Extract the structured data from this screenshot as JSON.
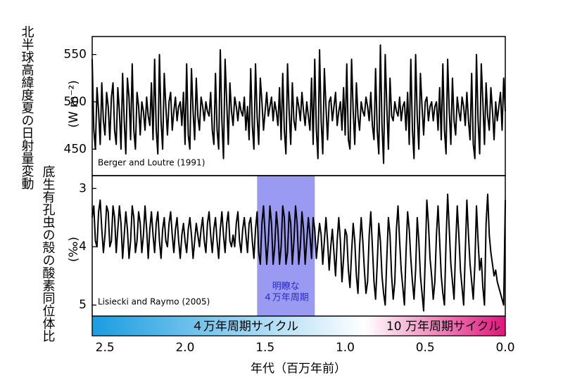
{
  "chart_data": [
    {
      "type": "line",
      "y_label": "北半球高緯度夏の日射量変動",
      "y_unit": "(W m⁻²)",
      "annotation": "Berger and Loutre (1991)",
      "color": "#000000",
      "xlim": [
        2.58,
        0
      ],
      "ylim": [
        422,
        569
      ],
      "yticks": [
        450,
        500,
        550
      ],
      "x": [
        2.58,
        2.57,
        2.56,
        2.55,
        2.54,
        2.53,
        2.52,
        2.51,
        2.5,
        2.49,
        2.48,
        2.47,
        2.46,
        2.45,
        2.44,
        2.43,
        2.42,
        2.41,
        2.4,
        2.39,
        2.38,
        2.37,
        2.36,
        2.35,
        2.34,
        2.33,
        2.32,
        2.31,
        2.3,
        2.29,
        2.28,
        2.27,
        2.26,
        2.25,
        2.24,
        2.23,
        2.22,
        2.21,
        2.2,
        2.19,
        2.18,
        2.17,
        2.16,
        2.15,
        2.14,
        2.13,
        2.12,
        2.11,
        2.1,
        2.09,
        2.08,
        2.07,
        2.06,
        2.05,
        2.04,
        2.03,
        2.02,
        2.01,
        2.0,
        1.99,
        1.98,
        1.97,
        1.96,
        1.95,
        1.94,
        1.93,
        1.92,
        1.91,
        1.9,
        1.89,
        1.88,
        1.87,
        1.86,
        1.85,
        1.84,
        1.83,
        1.82,
        1.81,
        1.8,
        1.79,
        1.78,
        1.77,
        1.76,
        1.75,
        1.74,
        1.73,
        1.72,
        1.71,
        1.7,
        1.69,
        1.68,
        1.67,
        1.66,
        1.65,
        1.64,
        1.63,
        1.62,
        1.61,
        1.6,
        1.59,
        1.58,
        1.57,
        1.56,
        1.55,
        1.54,
        1.53,
        1.52,
        1.51,
        1.5,
        1.49,
        1.48,
        1.47,
        1.46,
        1.45,
        1.44,
        1.43,
        1.42,
        1.41,
        1.4,
        1.39,
        1.38,
        1.37,
        1.36,
        1.35,
        1.34,
        1.33,
        1.32,
        1.31,
        1.3,
        1.29,
        1.28,
        1.27,
        1.26,
        1.25,
        1.24,
        1.23,
        1.22,
        1.21,
        1.2,
        1.19,
        1.18,
        1.17,
        1.16,
        1.15,
        1.14,
        1.13,
        1.12,
        1.11,
        1.1,
        1.09,
        1.08,
        1.07,
        1.06,
        1.05,
        1.04,
        1.03,
        1.02,
        1.01,
        1.0,
        0.99,
        0.98,
        0.97,
        0.96,
        0.95,
        0.94,
        0.93,
        0.92,
        0.91,
        0.9,
        0.89,
        0.88,
        0.87,
        0.86,
        0.85,
        0.84,
        0.83,
        0.82,
        0.81,
        0.8,
        0.79,
        0.78,
        0.77,
        0.76,
        0.75,
        0.74,
        0.73,
        0.72,
        0.71,
        0.7,
        0.69,
        0.68,
        0.67,
        0.66,
        0.65,
        0.64,
        0.63,
        0.62,
        0.61,
        0.6,
        0.59,
        0.58,
        0.57,
        0.56,
        0.55,
        0.54,
        0.53,
        0.52,
        0.51,
        0.5,
        0.49,
        0.48,
        0.47,
        0.46,
        0.45,
        0.44,
        0.43,
        0.42,
        0.41,
        0.4,
        0.39,
        0.38,
        0.37,
        0.36,
        0.35,
        0.34,
        0.33,
        0.32,
        0.31,
        0.3,
        0.29,
        0.28,
        0.27,
        0.26,
        0.25,
        0.24,
        0.23,
        0.22,
        0.21,
        0.2,
        0.19,
        0.18,
        0.17,
        0.16,
        0.15,
        0.14,
        0.13,
        0.12,
        0.11,
        0.1,
        0.09,
        0.08,
        0.07,
        0.06,
        0.05,
        0.04,
        0.03,
        0.02,
        0.01,
        0.0
      ],
      "values": [
        545,
        470,
        450,
        515,
        490,
        455,
        520,
        480,
        465,
        510,
        495,
        460,
        505,
        520,
        470,
        455,
        515,
        490,
        450,
        530,
        480,
        445,
        525,
        505,
        460,
        540,
        470,
        450,
        510,
        495,
        465,
        500,
        490,
        470,
        505,
        485,
        475,
        520,
        460,
        545,
        470,
        445,
        550,
        480,
        450,
        530,
        495,
        465,
        500,
        510,
        470,
        490,
        505,
        480,
        495,
        500,
        475,
        510,
        455,
        540,
        465,
        450,
        535,
        490,
        460,
        525,
        485,
        470,
        505,
        495,
        480,
        500,
        490,
        485,
        510,
        470,
        455,
        530,
        470,
        450,
        555,
        480,
        440,
        545,
        500,
        455,
        520,
        490,
        475,
        505,
        495,
        480,
        500,
        490,
        485,
        505,
        470,
        495,
        460,
        535,
        475,
        450,
        540,
        485,
        455,
        525,
        500,
        470,
        490,
        510,
        485,
        495,
        505,
        480,
        500,
        490,
        475,
        515,
        460,
        530,
        470,
        445,
        540,
        490,
        455,
        520,
        480,
        470,
        505,
        495,
        480,
        510,
        490,
        475,
        500,
        485,
        470,
        525,
        455,
        545,
        470,
        440,
        555,
        480,
        445,
        535,
        495,
        460,
        500,
        505,
        480,
        495,
        510,
        475,
        490,
        500,
        470,
        515,
        465,
        540,
        460,
        450,
        545,
        490,
        455,
        520,
        485,
        470,
        500,
        490,
        485,
        505,
        495,
        480,
        510,
        475,
        460,
        535,
        470,
        445,
        560,
        475,
        435,
        550,
        495,
        450,
        525,
        485,
        480,
        500,
        490,
        485,
        505,
        480,
        495,
        500,
        470,
        510,
        455,
        545,
        470,
        440,
        550,
        485,
        450,
        530,
        495,
        465,
        500,
        505,
        480,
        495,
        500,
        480,
        495,
        500,
        470,
        515,
        460,
        540,
        470,
        445,
        545,
        490,
        455,
        525,
        480,
        465,
        505,
        490,
        480,
        505,
        495,
        475,
        510,
        480,
        460,
        530,
        455,
        440,
        550,
        480,
        445,
        540,
        500,
        455,
        520,
        485,
        470,
        515,
        490,
        460,
        500,
        480,
        495,
        510,
        470,
        525,
        490
      ]
    },
    {
      "type": "line",
      "y_label": "底生有孔虫の殻の酸素同位体比",
      "y_unit": "(‰)",
      "annotation": "Lisiecki and Raymo (2005)",
      "color": "#000000",
      "x_label": "年代（百万年前）",
      "xlim": [
        2.58,
        0
      ],
      "ylim": [
        5.19,
        2.78
      ],
      "yticks": [
        3,
        4,
        5
      ],
      "xticks": [
        2.5,
        {
          "value": 2,
          "label": "2.0"
        },
        1.5,
        {
          "value": 1,
          "label": "1.0"
        },
        0.5,
        {
          "value": 0,
          "label": "0.0"
        }
      ],
      "highlight": {
        "xlim": [
          1.55,
          1.19
        ],
        "labels": [
          "明瞭な",
          "４万年周期"
        ],
        "color": "#9a9af2",
        "text_color": "#2a2ad0"
      },
      "colorbar": {
        "labels": [
          "４万年周期サイクル",
          "10 万年周期サイクル"
        ],
        "colors": [
          "#1a9de0",
          "#ffffff",
          "#e0167c"
        ]
      },
      "x": [
        2.58,
        2.57,
        2.56,
        2.55,
        2.54,
        2.53,
        2.52,
        2.51,
        2.5,
        2.49,
        2.48,
        2.47,
        2.46,
        2.45,
        2.44,
        2.43,
        2.42,
        2.41,
        2.4,
        2.39,
        2.38,
        2.37,
        2.36,
        2.35,
        2.34,
        2.33,
        2.32,
        2.31,
        2.3,
        2.29,
        2.28,
        2.27,
        2.26,
        2.25,
        2.24,
        2.23,
        2.22,
        2.21,
        2.2,
        2.19,
        2.18,
        2.17,
        2.16,
        2.15,
        2.14,
        2.13,
        2.12,
        2.11,
        2.1,
        2.09,
        2.08,
        2.07,
        2.06,
        2.05,
        2.04,
        2.03,
        2.02,
        2.01,
        2.0,
        1.99,
        1.98,
        1.97,
        1.96,
        1.95,
        1.94,
        1.93,
        1.92,
        1.91,
        1.9,
        1.89,
        1.88,
        1.87,
        1.86,
        1.85,
        1.84,
        1.83,
        1.82,
        1.81,
        1.8,
        1.79,
        1.78,
        1.77,
        1.76,
        1.75,
        1.74,
        1.73,
        1.72,
        1.71,
        1.7,
        1.69,
        1.68,
        1.67,
        1.66,
        1.65,
        1.64,
        1.63,
        1.62,
        1.61,
        1.6,
        1.59,
        1.58,
        1.57,
        1.56,
        1.55,
        1.54,
        1.53,
        1.52,
        1.51,
        1.5,
        1.49,
        1.48,
        1.47,
        1.46,
        1.45,
        1.44,
        1.43,
        1.42,
        1.41,
        1.4,
        1.39,
        1.38,
        1.37,
        1.36,
        1.35,
        1.34,
        1.33,
        1.32,
        1.31,
        1.3,
        1.29,
        1.28,
        1.27,
        1.26,
        1.25,
        1.24,
        1.23,
        1.22,
        1.21,
        1.2,
        1.19,
        1.18,
        1.17,
        1.16,
        1.15,
        1.14,
        1.13,
        1.12,
        1.11,
        1.1,
        1.09,
        1.08,
        1.07,
        1.06,
        1.05,
        1.04,
        1.03,
        1.02,
        1.01,
        1.0,
        0.99,
        0.98,
        0.97,
        0.96,
        0.95,
        0.94,
        0.93,
        0.92,
        0.91,
        0.9,
        0.89,
        0.88,
        0.87,
        0.86,
        0.85,
        0.84,
        0.83,
        0.82,
        0.81,
        0.8,
        0.79,
        0.78,
        0.77,
        0.76,
        0.75,
        0.74,
        0.73,
        0.72,
        0.71,
        0.7,
        0.69,
        0.68,
        0.67,
        0.66,
        0.65,
        0.64,
        0.63,
        0.62,
        0.61,
        0.6,
        0.59,
        0.58,
        0.57,
        0.56,
        0.55,
        0.54,
        0.53,
        0.52,
        0.51,
        0.5,
        0.49,
        0.48,
        0.47,
        0.46,
        0.45,
        0.44,
        0.43,
        0.42,
        0.41,
        0.4,
        0.39,
        0.38,
        0.37,
        0.36,
        0.35,
        0.34,
        0.33,
        0.32,
        0.31,
        0.3,
        0.29,
        0.28,
        0.27,
        0.26,
        0.25,
        0.24,
        0.23,
        0.22,
        0.21,
        0.2,
        0.19,
        0.18,
        0.17,
        0.16,
        0.15,
        0.14,
        0.13,
        0.12,
        0.11,
        0.1,
        0.09,
        0.08,
        0.07,
        0.06,
        0.05,
        0.04,
        0.03,
        0.02,
        0.01,
        0.0
      ],
      "values": [
        3.5,
        3.3,
        3.9,
        4.0,
        3.4,
        3.2,
        3.7,
        4.1,
        3.8,
        3.3,
        3.4,
        4.0,
        3.9,
        3.3,
        3.5,
        4.1,
        3.7,
        3.3,
        3.6,
        4.2,
        3.8,
        3.4,
        3.7,
        4.2,
        3.9,
        3.3,
        3.5,
        4.1,
        3.9,
        3.4,
        3.6,
        4.1,
        3.8,
        3.3,
        3.7,
        4.2,
        3.7,
        3.4,
        3.8,
        4.1,
        3.6,
        3.4,
        3.9,
        4.2,
        3.7,
        3.5,
        3.9,
        4.0,
        3.6,
        3.4,
        3.8,
        4.1,
        3.7,
        3.5,
        3.9,
        4.2,
        3.8,
        3.6,
        3.9,
        4.1,
        3.7,
        3.5,
        3.8,
        4.2,
        3.9,
        3.6,
        3.8,
        4.0,
        3.7,
        3.5,
        3.9,
        4.1,
        3.6,
        3.4,
        3.8,
        4.1,
        3.7,
        3.5,
        3.9,
        4.2,
        3.7,
        3.4,
        3.8,
        4.1,
        3.6,
        3.4,
        3.9,
        4.0,
        3.8,
        4.0,
        3.6,
        3.4,
        3.9,
        4.1,
        3.7,
        3.5,
        3.8,
        4.1,
        3.6,
        3.5,
        3.9,
        4.2,
        3.7,
        3.4,
        4.1,
        4.3,
        3.6,
        3.3,
        3.8,
        4.3,
        3.9,
        3.3,
        3.6,
        4.3,
        4.0,
        3.4,
        3.7,
        4.3,
        4.0,
        3.3,
        3.5,
        4.3,
        4.1,
        3.4,
        3.6,
        4.3,
        3.9,
        3.3,
        3.6,
        4.3,
        4.0,
        3.4,
        3.7,
        4.3,
        3.9,
        3.5,
        3.8,
        4.2,
        3.5,
        3.7,
        4.2,
        3.9,
        3.6,
        3.8,
        4.3,
        3.9,
        3.5,
        3.9,
        4.4,
        4.0,
        3.7,
        4.1,
        4.5,
        3.9,
        3.5,
        3.9,
        4.6,
        4.2,
        3.7,
        3.8,
        4.4,
        4.7,
        4.1,
        3.6,
        3.9,
        4.5,
        4.8,
        4.0,
        3.5,
        3.9,
        4.4,
        4.8,
        4.6,
        3.8,
        3.4,
        4.0,
        4.6,
        4.9,
        4.3,
        3.6,
        3.9,
        4.5,
        4.8,
        5.0,
        4.2,
        3.5,
        3.8,
        4.5,
        4.9,
        4.6,
        3.7,
        3.3,
        3.9,
        4.4,
        4.7,
        5.0,
        4.1,
        3.4,
        3.7,
        4.2,
        4.6,
        4.9,
        4.4,
        3.5,
        3.9,
        4.5,
        4.8,
        5.1,
        4.2,
        3.2,
        3.6,
        4.2,
        4.5,
        4.9,
        4.6,
        3.8,
        3.3,
        3.9,
        4.5,
        4.8,
        5.0,
        3.9,
        3.1,
        3.7,
        4.3,
        4.6,
        4.9,
        4.0,
        3.3,
        3.8,
        4.4,
        4.7,
        5.0,
        4.1,
        3.2,
        3.8,
        4.3,
        4.6,
        4.9,
        4.3,
        3.3,
        3.9,
        4.4,
        4.2,
        4.7,
        5.0,
        3.6,
        3.1,
        3.8,
        4.1,
        4.3,
        4.5,
        4.4,
        4.6,
        4.7,
        4.8,
        4.9,
        5.0,
        3.2
      ]
    }
  ]
}
